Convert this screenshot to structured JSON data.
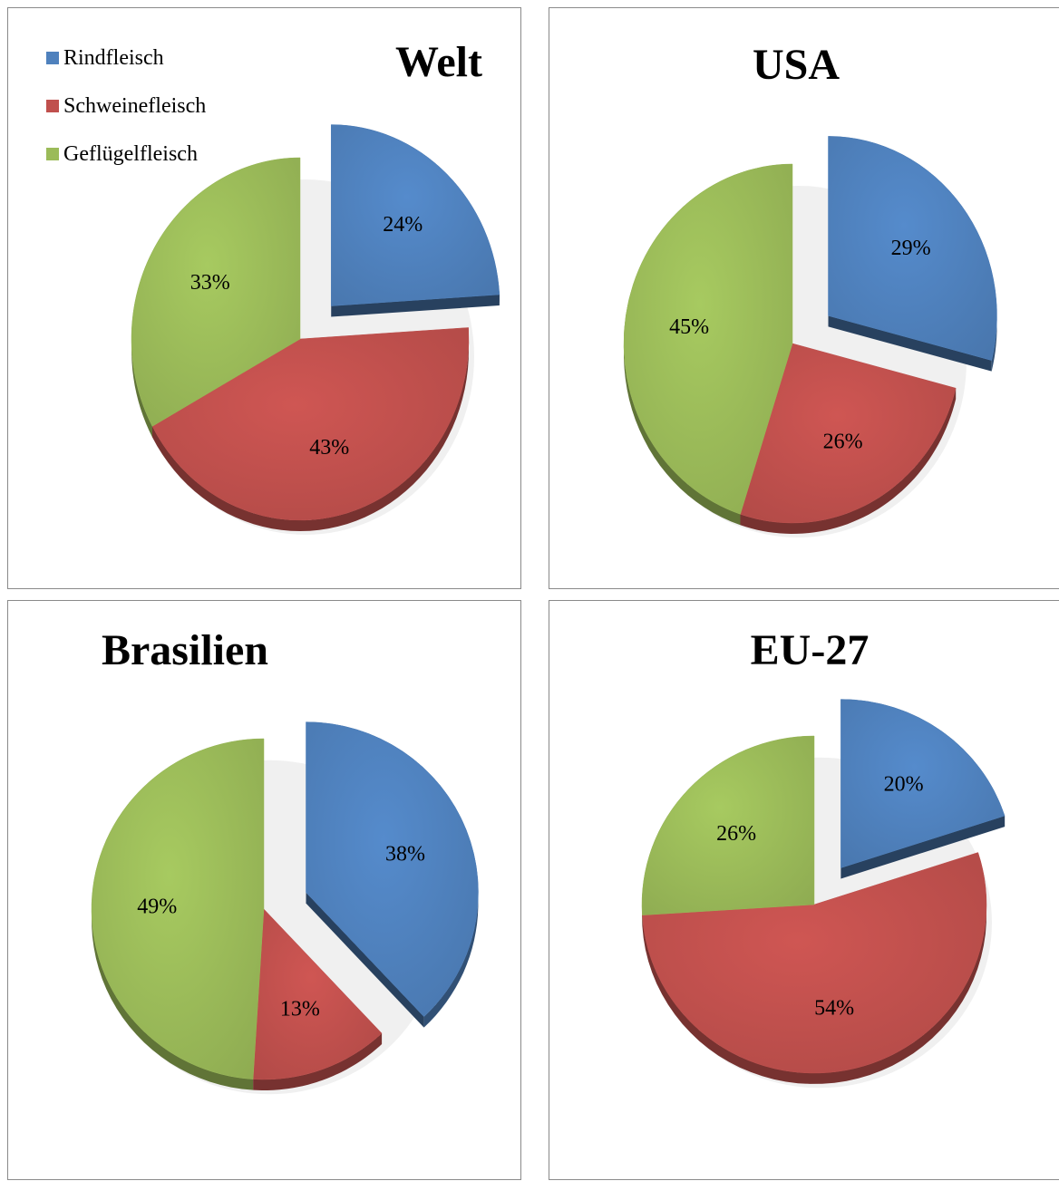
{
  "colors": {
    "Rindfleisch": "#4f81bd",
    "Schweinefleisch": "#c0504d",
    "Geflügelfleisch": "#9bbb59"
  },
  "legend": [
    "Rindfleisch",
    "Schweinefleisch",
    "Geflügelfleisch"
  ],
  "chart_data": [
    {
      "type": "pie",
      "title": "Welt",
      "legend_position": "top-left",
      "categories": [
        "Rindfleisch",
        "Schweinefleisch",
        "Geflügelfleisch"
      ],
      "values": [
        24,
        43,
        33
      ],
      "labels": [
        "24%",
        "43%",
        "33%"
      ],
      "exploded": "Rindfleisch"
    },
    {
      "type": "pie",
      "title": "USA",
      "categories": [
        "Rindfleisch",
        "Schweinefleisch",
        "Geflügelfleisch"
      ],
      "values": [
        29,
        26,
        45
      ],
      "labels": [
        "29%",
        "26%",
        "45%"
      ],
      "exploded": "Rindfleisch"
    },
    {
      "type": "pie",
      "title": "Brasilien",
      "categories": [
        "Rindfleisch",
        "Schweinefleisch",
        "Geflügelfleisch"
      ],
      "values": [
        38,
        13,
        49
      ],
      "labels": [
        "38%",
        "13%",
        "49%"
      ],
      "exploded": "Rindfleisch"
    },
    {
      "type": "pie",
      "title": "EU-27",
      "categories": [
        "Rindfleisch",
        "Schweinefleisch",
        "Geflügelfleisch"
      ],
      "values": [
        20,
        54,
        26
      ],
      "labels": [
        "20%",
        "54%",
        "26%"
      ],
      "exploded": "Rindfleisch"
    }
  ]
}
